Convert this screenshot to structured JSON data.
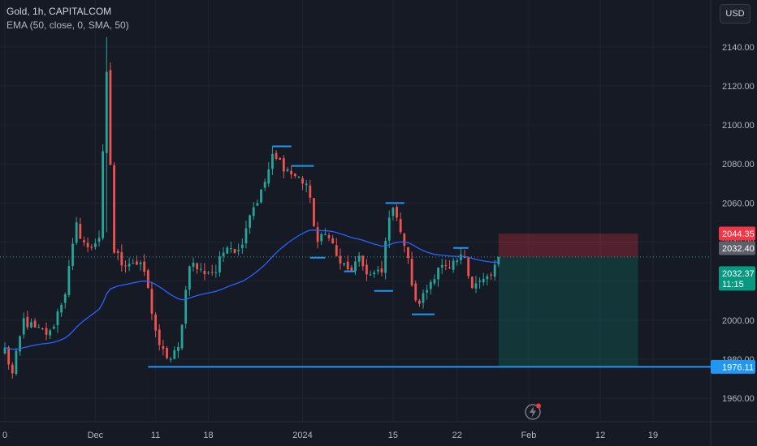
{
  "header": {
    "symbol_line": "Gold, 1h, CAPITALCOM",
    "indicator_line": "EMA (50, close, 0, SMA, 50)",
    "currency_button": "USD"
  },
  "colors": {
    "background": "#161a25",
    "up": "#26a69a",
    "down": "#ef5350",
    "ema": "#2962ff",
    "levels": "#2196f3",
    "grid": "#1f2430",
    "text": "#b2b5be"
  },
  "icons": {
    "logo": "tradingview-bolt-icon"
  },
  "chart_data": {
    "type": "candlestick",
    "title": "Gold, 1h, CAPITALCOM",
    "indicator": "EMA (50, close, 0, SMA, 50)",
    "y_axis": {
      "ticks": [
        "2140.00",
        "2120.00",
        "2100.00",
        "2080.00",
        "2060.00",
        "2040.00",
        "2020.00",
        "2000.00",
        "1980.00",
        "1960.00"
      ],
      "tick_values": [
        2140,
        2120,
        2100,
        2080,
        2060,
        2040,
        2020,
        2000,
        1980,
        1960
      ],
      "range": [
        1948,
        2164
      ]
    },
    "x_axis": {
      "ticks": [
        "0",
        "Dec",
        "11",
        "18",
        "2024",
        "15",
        "22",
        "Feb",
        "12",
        "19"
      ],
      "tick_index": [
        0,
        24,
        40,
        54,
        79,
        103,
        120,
        139,
        158,
        172
      ],
      "index_range": [
        0,
        186
      ]
    },
    "price_badges": [
      {
        "label": "2044.35",
        "value": 2044.35,
        "color": "#f23645"
      },
      {
        "label": "2032.40",
        "value": 2032.4,
        "color": "#5d606b"
      },
      {
        "label": "2032.37",
        "value": 2032.37,
        "color": "#089981",
        "countdown": "11:15"
      },
      {
        "label": "1976.11",
        "value": 1976.11,
        "color": "#2196f3"
      }
    ],
    "position": {
      "entry": 2032.37,
      "stop": 2044.35,
      "target": 1976.11,
      "start_index": 131,
      "end_index": 168
    },
    "support_line": {
      "value": 1976.11,
      "start_index": 38,
      "end_index": 175
    },
    "key_levels": [
      {
        "value": 2089,
        "start_index": 71,
        "end_index": 76
      },
      {
        "value": 2079,
        "start_index": 76,
        "end_index": 82
      },
      {
        "value": 2032,
        "start_index": 81,
        "end_index": 85
      },
      {
        "value": 2025,
        "start_index": 90,
        "end_index": 93
      },
      {
        "value": 2015,
        "start_index": 98,
        "end_index": 103
      },
      {
        "value": 2060,
        "start_index": 101,
        "end_index": 106
      },
      {
        "value": 2003,
        "start_index": 108,
        "end_index": 114
      },
      {
        "value": 2037,
        "start_index": 119,
        "end_index": 123
      }
    ],
    "close_anchors": [
      [
        0,
        1985
      ],
      [
        2,
        1972
      ],
      [
        5,
        2000
      ],
      [
        8,
        1995
      ],
      [
        12,
        1993
      ],
      [
        16,
        2015
      ],
      [
        19,
        2048
      ],
      [
        22,
        2036
      ],
      [
        25,
        2043
      ],
      [
        27,
        2125
      ],
      [
        29,
        2035
      ],
      [
        31,
        2030
      ],
      [
        34,
        2030
      ],
      [
        37,
        2025
      ],
      [
        41,
        1985
      ],
      [
        44,
        1980
      ],
      [
        46,
        1985
      ],
      [
        49,
        2030
      ],
      [
        52,
        2025
      ],
      [
        56,
        2025
      ],
      [
        59,
        2040
      ],
      [
        62,
        2035
      ],
      [
        65,
        2055
      ],
      [
        68,
        2065
      ],
      [
        71,
        2083
      ],
      [
        73,
        2081
      ],
      [
        76,
        2075
      ],
      [
        80,
        2070
      ],
      [
        83,
        2040
      ],
      [
        86,
        2045
      ],
      [
        88,
        2032
      ],
      [
        91,
        2025
      ],
      [
        94,
        2030
      ],
      [
        97,
        2023
      ],
      [
        100,
        2024
      ],
      [
        102,
        2055
      ],
      [
        104,
        2055
      ],
      [
        107,
        2030
      ],
      [
        109,
        2008
      ],
      [
        111,
        2012
      ],
      [
        113,
        2020
      ],
      [
        115,
        2028
      ],
      [
        118,
        2025
      ],
      [
        120,
        2030
      ],
      [
        122,
        2033
      ],
      [
        124,
        2018
      ],
      [
        127,
        2020
      ],
      [
        129,
        2023
      ],
      [
        131,
        2032
      ]
    ],
    "candle_count": 132,
    "ema_period": 50
  }
}
